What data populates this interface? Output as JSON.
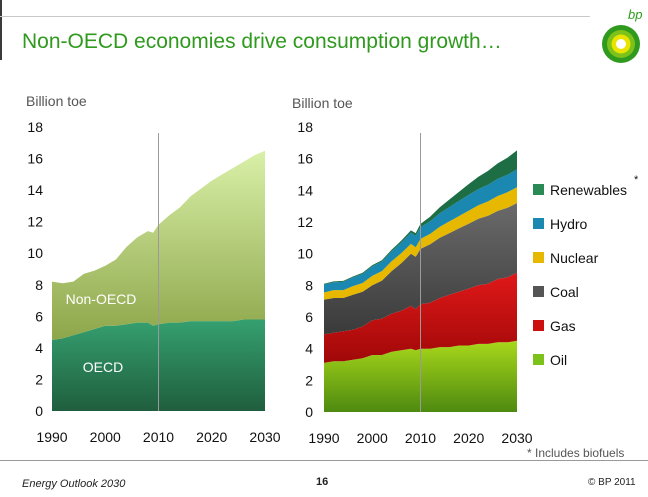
{
  "title": "Non-OECD economies drive consumption growth…",
  "footer": {
    "left": "Energy Outlook 2030",
    "page": "16",
    "copyright": "© BP 2011"
  },
  "logo_text": "bp",
  "footnote": "* Includes biofuels",
  "colors": {
    "oecd": "#2f8c62",
    "non_oecd": "#c6e58a",
    "oil": "#7cc21a",
    "gas": "#cc1010",
    "coal": "#555555",
    "nuclear": "#e6b800",
    "hydro": "#1a88b0",
    "renewables": "#2a8a55"
  },
  "chart_data": [
    {
      "type": "area",
      "ylabel": "Billion toe",
      "ylim": [
        0,
        18
      ],
      "yticks": [
        "0",
        "2",
        "4",
        "6",
        "8",
        "10",
        "12",
        "14",
        "16",
        "18"
      ],
      "xlim": [
        1990,
        2030
      ],
      "xticks": [
        "1990",
        "2000",
        "2010",
        "2020",
        "2030"
      ],
      "x": [
        1990,
        1992,
        1994,
        1996,
        1998,
        2000,
        2002,
        2004,
        2006,
        2008,
        2009,
        2010,
        2012,
        2014,
        2016,
        2018,
        2020,
        2022,
        2024,
        2026,
        2028,
        2030
      ],
      "series": [
        {
          "name": "OECD",
          "values": [
            4.5,
            4.6,
            4.8,
            5.0,
            5.2,
            5.4,
            5.4,
            5.5,
            5.6,
            5.6,
            5.4,
            5.5,
            5.6,
            5.6,
            5.7,
            5.7,
            5.7,
            5.7,
            5.7,
            5.8,
            5.8,
            5.8
          ]
        },
        {
          "name": "Non-OECD",
          "values": [
            3.7,
            3.5,
            3.4,
            3.7,
            3.7,
            3.8,
            4.2,
            4.9,
            5.4,
            5.8,
            5.9,
            6.3,
            6.8,
            7.3,
            7.9,
            8.4,
            8.9,
            9.3,
            9.7,
            10.0,
            10.4,
            10.7
          ]
        }
      ],
      "labels": [
        "Non-OECD",
        "OECD"
      ]
    },
    {
      "type": "area",
      "ylabel": "Billion toe",
      "ylim": [
        0,
        18
      ],
      "yticks": [
        "0",
        "2",
        "4",
        "6",
        "8",
        "10",
        "12",
        "14",
        "16",
        "18"
      ],
      "xlim": [
        1990,
        2030
      ],
      "xticks": [
        "1990",
        "2000",
        "2010",
        "2020",
        "2030"
      ],
      "x": [
        1990,
        1992,
        1994,
        1996,
        1998,
        2000,
        2002,
        2004,
        2006,
        2008,
        2009,
        2010,
        2012,
        2014,
        2016,
        2018,
        2020,
        2022,
        2024,
        2026,
        2028,
        2030
      ],
      "series": [
        {
          "name": "Oil",
          "values": [
            3.1,
            3.2,
            3.2,
            3.3,
            3.4,
            3.6,
            3.6,
            3.8,
            3.9,
            4.0,
            3.9,
            4.0,
            4.0,
            4.1,
            4.1,
            4.2,
            4.2,
            4.3,
            4.3,
            4.4,
            4.4,
            4.5
          ]
        },
        {
          "name": "Gas",
          "values": [
            1.8,
            1.8,
            1.9,
            1.9,
            2.0,
            2.2,
            2.3,
            2.4,
            2.5,
            2.7,
            2.6,
            2.8,
            2.9,
            3.1,
            3.3,
            3.4,
            3.6,
            3.7,
            3.8,
            4.0,
            4.1,
            4.3
          ]
        },
        {
          "name": "Coal",
          "values": [
            2.2,
            2.2,
            2.1,
            2.2,
            2.2,
            2.2,
            2.4,
            2.7,
            3.0,
            3.3,
            3.3,
            3.5,
            3.7,
            3.8,
            3.9,
            4.0,
            4.1,
            4.2,
            4.3,
            4.3,
            4.4,
            4.4
          ]
        },
        {
          "name": "Nuclear",
          "values": [
            0.45,
            0.5,
            0.5,
            0.55,
            0.55,
            0.6,
            0.6,
            0.62,
            0.63,
            0.62,
            0.6,
            0.63,
            0.65,
            0.7,
            0.74,
            0.78,
            0.82,
            0.86,
            0.9,
            0.94,
            0.98,
            1.0
          ]
        },
        {
          "name": "Hydro",
          "values": [
            0.5,
            0.5,
            0.52,
            0.55,
            0.57,
            0.6,
            0.6,
            0.63,
            0.67,
            0.7,
            0.72,
            0.75,
            0.8,
            0.85,
            0.9,
            0.95,
            1.0,
            1.02,
            1.05,
            1.08,
            1.1,
            1.12
          ]
        },
        {
          "name": "Renewables",
          "values": [
            0.05,
            0.05,
            0.06,
            0.06,
            0.07,
            0.08,
            0.09,
            0.1,
            0.12,
            0.15,
            0.18,
            0.2,
            0.28,
            0.38,
            0.48,
            0.58,
            0.68,
            0.78,
            0.88,
            0.98,
            1.08,
            1.2
          ]
        }
      ],
      "legend": [
        "Renewables",
        "Hydro",
        "Nuclear",
        "Coal",
        "Gas",
        "Oil"
      ],
      "legend_position": "right",
      "legend_marker": "*"
    }
  ]
}
